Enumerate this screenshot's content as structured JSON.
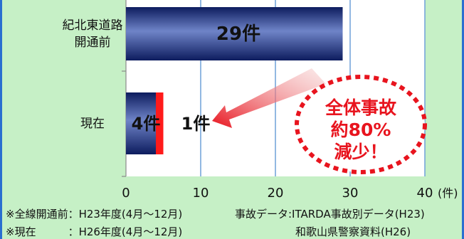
{
  "chart_data": {
    "type": "bar",
    "orientation": "horizontal",
    "categories": [
      "紀北東道路開通前",
      "現在"
    ],
    "category_lines": [
      [
        "紀北東道路",
        "開通前"
      ],
      [
        "現在"
      ]
    ],
    "series": [
      {
        "values": [
          29,
          4
        ],
        "color": "#1b2f86"
      },
      {
        "values": [
          0,
          1
        ],
        "color": "#ff1a1a"
      }
    ],
    "bar_labels": [
      "29件",
      "4件",
      "1件"
    ],
    "xlim": [
      0,
      40
    ],
    "xticks": [
      0,
      10,
      20,
      30,
      40
    ],
    "xunit": "(件)",
    "grid": true
  },
  "callout": {
    "lines": [
      "全体事故",
      "約80%",
      "減少！"
    ],
    "color": "#e8141e"
  },
  "footnotes": {
    "row1_left": "※全線開通前：H23年度(4月～12月)",
    "row1_right": "事故データ:ITARDA事故別データ(H23)",
    "row2_left": "※現在　　　：H26年度(4月～12月)",
    "row2_right": "和歌山県警察資料(H26)"
  }
}
